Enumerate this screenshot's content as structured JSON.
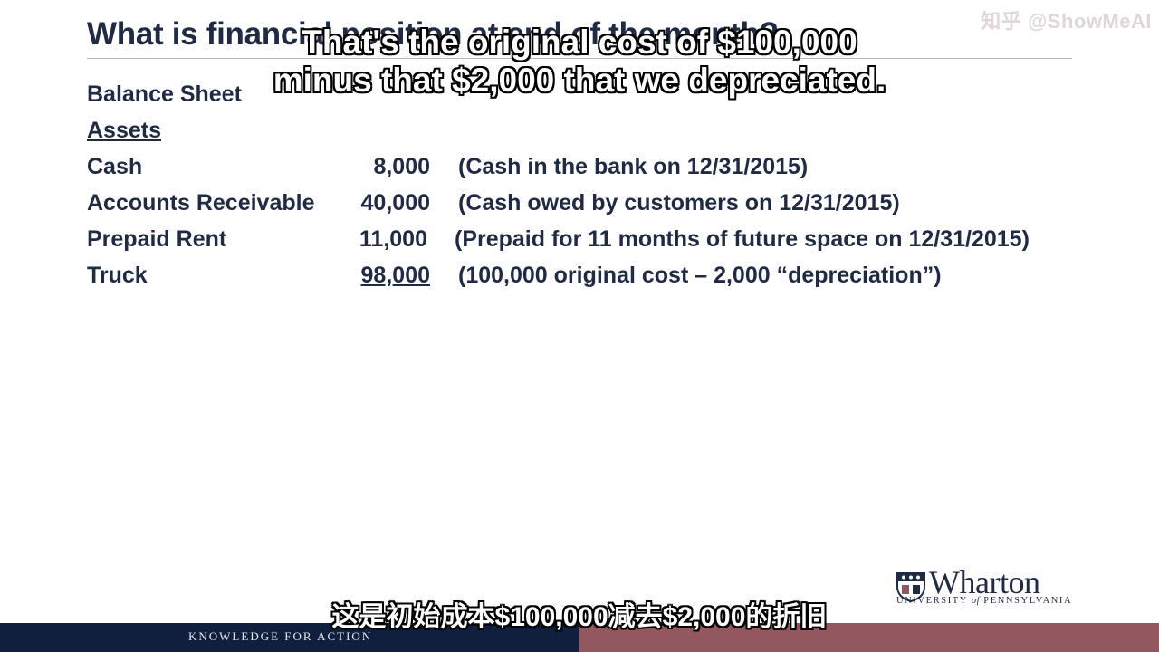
{
  "slide": {
    "title": "What is financial position at end of the month?",
    "sheet_title": "Balance Sheet",
    "assets_header": "Assets",
    "rows": [
      {
        "label": "Cash",
        "amount": "8,000",
        "note": "(Cash in the bank on 12/31/2015)"
      },
      {
        "label": "Accounts Receivable",
        "amount": "40,000",
        "note": "(Cash owed by customers on 12/31/2015)"
      },
      {
        "label": "Prepaid Rent",
        "amount": "11,000",
        "note": "(Prepaid for 11 months of future space on 12/31/2015)"
      },
      {
        "label": "Truck",
        "amount": "98,000",
        "note": "(100,000 original cost – 2,000 “depreciation”)"
      }
    ]
  },
  "subtitles": {
    "en_line1": "That's the original cost of $100,000",
    "en_line2": "minus that $2,000 that we depreciated.",
    "zh": "这是初始成本$100,000减去$2,000的折旧"
  },
  "watermark": "知乎 @ShowMeAI",
  "footer": {
    "tagline": "KNOWLEDGE FOR ACTION",
    "left_color": "#0f1f3d",
    "right_color": "#93585f"
  },
  "logo": {
    "wordmark": "Wharton",
    "university_prefix": "UNIVERSITY",
    "university_of": "of",
    "university_suffix": "PENNSYLVANIA"
  }
}
